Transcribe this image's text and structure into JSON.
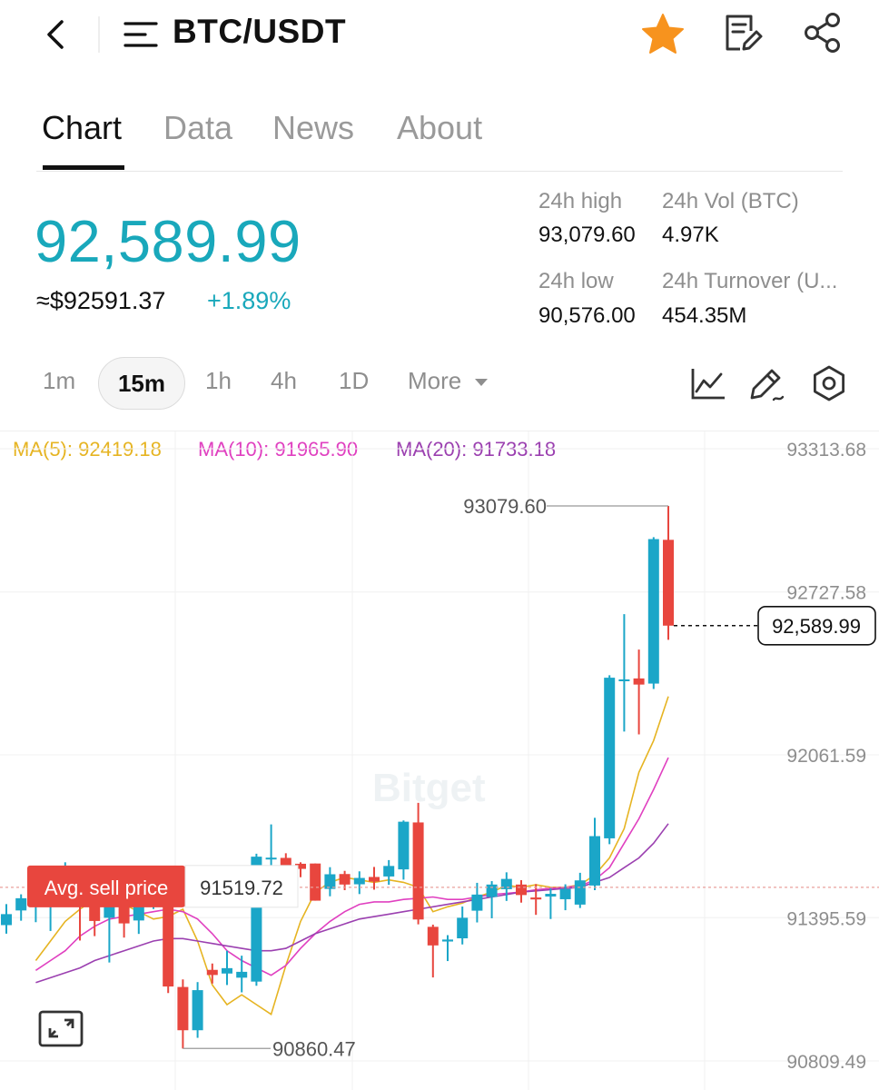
{
  "header": {
    "title": "BTC/USDT",
    "icons": [
      "chevron-left-icon",
      "menu-icon",
      "star-icon",
      "notes-icon",
      "share-icon"
    ],
    "star_color": "#f7931e"
  },
  "tabs": [
    {
      "label": "Chart",
      "active": true
    },
    {
      "label": "Data",
      "active": false
    },
    {
      "label": "News",
      "active": false
    },
    {
      "label": "About",
      "active": false
    }
  ],
  "ticker": {
    "price": "92,589.99",
    "usd_approx": "≈$92591.37",
    "change": "+1.89%",
    "accent_color": "#19a8bb"
  },
  "stats": {
    "high_label": "24h high",
    "high_value": "93,079.60",
    "vol_label": "24h Vol (BTC)",
    "vol_value": "4.97K",
    "low_label": "24h low",
    "low_value": "90,576.00",
    "turnover_label": "24h Turnover (U...",
    "turnover_value": "454.35M"
  },
  "intervals": {
    "items": [
      "1m",
      "15m",
      "1h",
      "4h",
      "1D",
      "More"
    ],
    "selected": "15m"
  },
  "chart_tools": [
    "line-chart-icon",
    "draw-icon",
    "settings-icon"
  ],
  "chart_data": {
    "type": "candlestick",
    "ma": [
      {
        "label": "MA(5): 92419.18",
        "color": "#e6b422"
      },
      {
        "label": "MA(10): 91965.90",
        "color": "#e040c0"
      },
      {
        "label": "MA(20): 91733.18",
        "color": "#9b40b0"
      }
    ],
    "y_ticks": [
      "93313.68",
      "92727.58",
      "92061.59",
      "91395.59",
      "90809.49"
    ],
    "y_range": [
      90809.49,
      93313.68
    ],
    "current_price_label": "92,589.99",
    "current_price": 92589.99,
    "high_label": "93079.60",
    "high": 93079.6,
    "low_label": "90860.47",
    "low": 90860.47,
    "avg_sell_label": "Avg. sell price",
    "avg_sell_value": "91519.72",
    "avg_sell": 91519.72,
    "watermark": "Bitget",
    "up_color": "#1ba6c8",
    "down_color": "#e8463e",
    "candles": [
      {
        "o": 91365,
        "h": 91451,
        "l": 91330,
        "c": 91410
      },
      {
        "o": 91425,
        "h": 91491,
        "l": 91383,
        "c": 91475
      },
      {
        "o": 91447,
        "h": 91505,
        "l": 91377,
        "c": 91478
      },
      {
        "o": 91478,
        "h": 91576,
        "l": 91341,
        "c": 91498
      },
      {
        "o": 91500,
        "h": 91622,
        "l": 91441,
        "c": 91543
      },
      {
        "o": 91540,
        "h": 91586,
        "l": 91302,
        "c": 91461
      },
      {
        "o": 91458,
        "h": 91520,
        "l": 91320,
        "c": 91382
      },
      {
        "o": 91395,
        "h": 91529,
        "l": 91212,
        "c": 91460
      },
      {
        "o": 91454,
        "h": 91506,
        "l": 91314,
        "c": 91372
      },
      {
        "o": 91384,
        "h": 91538,
        "l": 91329,
        "c": 91491
      },
      {
        "o": 91476,
        "h": 91539,
        "l": 91431,
        "c": 91515
      },
      {
        "o": 91490,
        "h": 91529,
        "l": 91087,
        "c": 91114
      },
      {
        "o": 91112,
        "h": 91143,
        "l": 90860,
        "c": 90935
      },
      {
        "o": 90935,
        "h": 91132,
        "l": 90904,
        "c": 91099
      },
      {
        "o": 91182,
        "h": 91208,
        "l": 91126,
        "c": 91161
      },
      {
        "o": 91167,
        "h": 91260,
        "l": 91120,
        "c": 91189
      },
      {
        "o": 91150,
        "h": 91240,
        "l": 91090,
        "c": 91174
      },
      {
        "o": 91134,
        "h": 91657,
        "l": 91117,
        "c": 91645
      },
      {
        "o": 91641,
        "h": 91777,
        "l": 91562,
        "c": 91641
      },
      {
        "o": 91640,
        "h": 91659,
        "l": 91588,
        "c": 91608
      },
      {
        "o": 91616,
        "h": 91622,
        "l": 91561,
        "c": 91595
      },
      {
        "o": 91617,
        "h": 91597,
        "l": 91467,
        "c": 91465
      },
      {
        "o": 91513,
        "h": 91602,
        "l": 91483,
        "c": 91573
      },
      {
        "o": 91574,
        "h": 91587,
        "l": 91508,
        "c": 91531
      },
      {
        "o": 91532,
        "h": 91585,
        "l": 91492,
        "c": 91558
      },
      {
        "o": 91562,
        "h": 91603,
        "l": 91510,
        "c": 91543
      },
      {
        "o": 91564,
        "h": 91631,
        "l": 91530,
        "c": 91607
      },
      {
        "o": 91593,
        "h": 91793,
        "l": 91551,
        "c": 91788
      },
      {
        "o": 91785,
        "h": 91865,
        "l": 91368,
        "c": 91388
      },
      {
        "o": 91358,
        "h": 91367,
        "l": 91151,
        "c": 91282
      },
      {
        "o": 91298,
        "h": 91324,
        "l": 91218,
        "c": 91306
      },
      {
        "o": 91311,
        "h": 91441,
        "l": 91286,
        "c": 91395
      },
      {
        "o": 91424,
        "h": 91538,
        "l": 91376,
        "c": 91490
      },
      {
        "o": 91480,
        "h": 91545,
        "l": 91393,
        "c": 91531
      },
      {
        "o": 91512,
        "h": 91581,
        "l": 91464,
        "c": 91554
      },
      {
        "o": 91531,
        "h": 91549,
        "l": 91457,
        "c": 91488
      },
      {
        "o": 91478,
        "h": 91533,
        "l": 91407,
        "c": 91470
      },
      {
        "o": 91482,
        "h": 91515,
        "l": 91390,
        "c": 91493
      },
      {
        "o": 91471,
        "h": 91532,
        "l": 91426,
        "c": 91513
      },
      {
        "o": 91449,
        "h": 91579,
        "l": 91435,
        "c": 91548
      },
      {
        "o": 91527,
        "h": 91804,
        "l": 91508,
        "c": 91729
      },
      {
        "o": 91720,
        "h": 92387,
        "l": 91696,
        "c": 92377
      },
      {
        "o": 92367,
        "h": 92637,
        "l": 92157,
        "c": 92370
      },
      {
        "o": 92374,
        "h": 92492,
        "l": 92145,
        "c": 92349
      },
      {
        "o": 92353,
        "h": 92952,
        "l": 92331,
        "c": 92944
      },
      {
        "o": 92941,
        "h": 93079.6,
        "l": 92532,
        "c": 92589.99
      }
    ],
    "ma5": [
      91220,
      91300,
      91380,
      91430,
      91470,
      91470,
      91450,
      91420,
      91390,
      91400,
      91430,
      91300,
      91120,
      91040,
      91080,
      91040,
      91000,
      91200,
      91380,
      91500,
      91540,
      91560,
      91550,
      91540,
      91550,
      91540,
      91520,
      91420,
      91440,
      91455,
      91480,
      91500,
      91528,
      91520,
      91530,
      91520,
      91520,
      91530,
      91570,
      91640,
      91760,
      91990,
      92120,
      92300
    ],
    "ma10": [
      91180,
      91220,
      91260,
      91320,
      91360,
      91390,
      91400,
      91410,
      91420,
      91430,
      91420,
      91390,
      91330,
      91260,
      91220,
      91190,
      91160,
      91200,
      91270,
      91330,
      91380,
      91420,
      91450,
      91460,
      91460,
      91470,
      91475,
      91480,
      91470,
      91470,
      91480,
      91490,
      91495,
      91500,
      91510,
      91515,
      91520,
      91525,
      91550,
      91600,
      91700,
      91800,
      91920,
      92050
    ],
    "ma20": [
      91130,
      91150,
      91170,
      91190,
      91220,
      91240,
      91260,
      91280,
      91300,
      91310,
      91310,
      91300,
      91290,
      91280,
      91270,
      91260,
      91260,
      91270,
      91300,
      91330,
      91350,
      91370,
      91390,
      91400,
      91410,
      91420,
      91430,
      91440,
      91450,
      91460,
      91470,
      91480,
      91490,
      91500,
      91505,
      91510,
      91515,
      91520,
      91540,
      91560,
      91600,
      91640,
      91700,
      91780
    ]
  }
}
